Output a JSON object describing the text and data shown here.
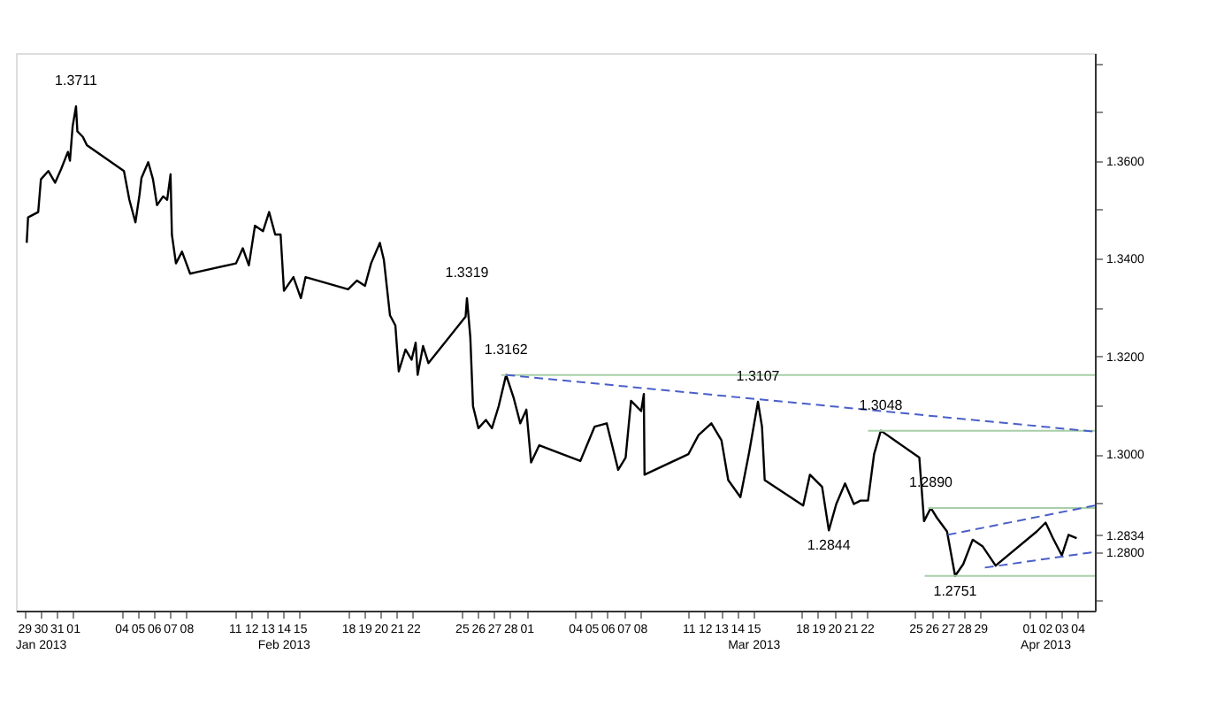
{
  "chart_data": {
    "type": "line",
    "xlim": [
      "2013-01-28T12:00",
      "2013-04-05T02:00"
    ],
    "ylim": [
      1.268,
      1.382
    ],
    "xticks": [
      {
        "value": "2013-01-29",
        "label": "29"
      },
      {
        "value": "2013-01-30",
        "label": "30\nJan 2013"
      },
      {
        "value": "2013-01-31",
        "label": "31"
      },
      {
        "value": "2013-02-01",
        "label": "01"
      },
      {
        "value": "2013-02-04",
        "label": "04"
      },
      {
        "value": "2013-02-05",
        "label": "05"
      },
      {
        "value": "2013-02-06",
        "label": "06"
      },
      {
        "value": "2013-02-07",
        "label": "07"
      },
      {
        "value": "2013-02-08",
        "label": "08"
      },
      {
        "value": "2013-02-11",
        "label": "11"
      },
      {
        "value": "2013-02-12",
        "label": "12"
      },
      {
        "value": "2013-02-13",
        "label": "13"
      },
      {
        "value": "2013-02-14",
        "label": "14\nFeb 2013"
      },
      {
        "value": "2013-02-15",
        "label": "15"
      },
      {
        "value": "2013-02-18",
        "label": "18"
      },
      {
        "value": "2013-02-19",
        "label": "19"
      },
      {
        "value": "2013-02-20",
        "label": "20"
      },
      {
        "value": "2013-02-21",
        "label": "21"
      },
      {
        "value": "2013-02-22",
        "label": "22"
      },
      {
        "value": "2013-02-25",
        "label": "25"
      },
      {
        "value": "2013-02-26",
        "label": "26"
      },
      {
        "value": "2013-02-27",
        "label": "27"
      },
      {
        "value": "2013-02-28",
        "label": "28"
      },
      {
        "value": "2013-03-01",
        "label": "01"
      },
      {
        "value": "2013-03-04",
        "label": "04"
      },
      {
        "value": "2013-03-05",
        "label": "05"
      },
      {
        "value": "2013-03-06",
        "label": "06"
      },
      {
        "value": "2013-03-07",
        "label": "07"
      },
      {
        "value": "2013-03-08",
        "label": "08"
      },
      {
        "value": "2013-03-11",
        "label": "11"
      },
      {
        "value": "2013-03-12",
        "label": "12"
      },
      {
        "value": "2013-03-13",
        "label": "13"
      },
      {
        "value": "2013-03-14",
        "label": "14"
      },
      {
        "value": "2013-03-15",
        "label": "15\nMar 2013"
      },
      {
        "value": "2013-03-18",
        "label": "18"
      },
      {
        "value": "2013-03-19",
        "label": "19"
      },
      {
        "value": "2013-03-20",
        "label": "20"
      },
      {
        "value": "2013-03-21",
        "label": "21"
      },
      {
        "value": "2013-03-22",
        "label": "22"
      },
      {
        "value": "2013-03-25",
        "label": "25"
      },
      {
        "value": "2013-03-26",
        "label": "26"
      },
      {
        "value": "2013-03-27",
        "label": "27"
      },
      {
        "value": "2013-03-28",
        "label": "28"
      },
      {
        "value": "2013-03-29",
        "label": "29"
      },
      {
        "value": "2013-04-01",
        "label": "01"
      },
      {
        "value": "2013-04-02",
        "label": "02\nApr 2013"
      },
      {
        "value": "2013-04-03",
        "label": "03"
      },
      {
        "value": "2013-04-04",
        "label": "04"
      }
    ],
    "yticks": [
      {
        "value": 1.27,
        "label": null
      },
      {
        "value": 1.28,
        "label": "1.2800"
      },
      {
        "value": 1.2834,
        "label": "1.2834"
      },
      {
        "value": 1.29,
        "label": null
      },
      {
        "value": 1.3,
        "label": "1.3000"
      },
      {
        "value": 1.31,
        "label": null
      },
      {
        "value": 1.32,
        "label": "1.3200"
      },
      {
        "value": 1.33,
        "label": null
      },
      {
        "value": 1.34,
        "label": "1.3400"
      },
      {
        "value": 1.35,
        "label": null
      },
      {
        "value": 1.36,
        "label": "1.3600"
      },
      {
        "value": 1.37,
        "label": null
      },
      {
        "value": 1.38,
        "label": null
      }
    ],
    "series": [
      {
        "color": "#000000",
        "x": [
          "2013-01-29T04:00",
          "2013-01-29T06:00",
          "2013-01-29T21:00",
          "2013-01-30T01:00",
          "2013-01-30T12:00",
          "2013-01-30T22:00",
          "2013-01-31T07:00",
          "2013-01-31T17:00",
          "2013-01-31T20:00",
          "2013-02-01T00:00",
          "2013-02-01T05:00",
          "2013-02-01T07:00",
          "2013-02-01T15:00",
          "2013-02-01T21:00",
          "2013-02-04T04:00",
          "2013-02-04T12:00",
          "2013-02-04T21:00",
          "2013-02-05T03:00",
          "2013-02-05T06:00",
          "2013-02-05T16:00",
          "2013-02-05T23:00",
          "2013-02-06T05:00",
          "2013-02-06T14:00",
          "2013-02-06T20:00",
          "2013-02-07T01:00",
          "2013-02-07T03:00",
          "2013-02-07T09:00",
          "2013-02-07T18:00",
          "2013-02-08T06:00",
          "2013-02-08T15:00",
          "2013-02-11T02:00",
          "2013-02-11T12:00",
          "2013-02-11T21:00",
          "2013-02-12T06:00",
          "2013-02-12T18:00",
          "2013-02-13T03:00",
          "2013-02-13T12:00",
          "2013-02-13T20:00",
          "2013-02-14T01:00",
          "2013-02-14T15:00",
          "2013-02-15T02:00",
          "2013-02-15T09:00",
          "2013-02-18T00:00",
          "2013-02-18T13:00",
          "2013-02-19T01:00",
          "2013-02-19T10:00",
          "2013-02-19T23:00",
          "2013-02-20T05:00",
          "2013-02-20T14:00",
          "2013-02-20T22:00",
          "2013-02-21T03:00",
          "2013-02-21T13:00",
          "2013-02-21T22:00",
          "2013-02-22T04:00",
          "2013-02-22T07:00",
          "2013-02-22T15:00",
          "2013-02-22T23:00",
          "2013-02-25T06:00",
          "2013-02-25T08:00",
          "2013-02-25T13:00",
          "2013-02-25T17:00",
          "2013-02-26T01:00",
          "2013-02-26T12:00",
          "2013-02-26T21:00",
          "2013-02-27T07:00",
          "2013-02-27T18:00",
          "2013-02-28T05:00",
          "2013-02-28T15:00",
          "2013-03-01T00:00",
          "2013-03-01T07:00",
          "2013-03-01T19:00",
          "2013-03-04T08:00",
          "2013-03-05T05:00",
          "2013-03-05T23:00",
          "2013-03-06T16:00",
          "2013-03-07T03:00",
          "2013-03-07T11:00",
          "2013-03-08T02:00",
          "2013-03-08T06:00",
          "2013-03-08T07:00",
          "2013-03-11T00:00",
          "2013-03-11T15:00",
          "2013-03-12T10:00",
          "2013-03-13T01:00",
          "2013-03-13T11:00",
          "2013-03-14T05:00",
          "2013-03-14T18:00",
          "2013-03-15T07:00",
          "2013-03-15T13:00",
          "2013-03-15T17:00",
          "2013-03-18T02:00",
          "2013-03-18T12:00",
          "2013-03-19T06:00",
          "2013-03-19T16:00",
          "2013-03-20T03:00",
          "2013-03-20T16:00",
          "2013-03-21T05:00",
          "2013-03-21T15:00",
          "2013-03-22T02:00",
          "2013-03-22T11:00",
          "2013-03-22T21:00",
          "2013-03-25T06:00",
          "2013-03-25T13:00",
          "2013-03-25T23:00",
          "2013-03-26T08:00",
          "2013-03-26T23:00",
          "2013-03-27T11:00",
          "2013-03-27T23:00",
          "2013-03-28T13:00",
          "2013-03-29T04:00",
          "2013-03-29T23:00",
          "2013-04-01T12:00",
          "2013-04-02T01:00",
          "2013-04-02T12:00",
          "2013-04-03T01:00",
          "2013-04-03T11:00",
          "2013-04-03T23:00"
        ],
        "values": [
          1.3432,
          1.3484,
          1.3495,
          1.3562,
          1.3579,
          1.3555,
          1.3583,
          1.3618,
          1.36,
          1.367,
          1.3711,
          1.366,
          1.3649,
          1.3632,
          1.3579,
          1.352,
          1.3474,
          1.353,
          1.3565,
          1.3597,
          1.3562,
          1.3509,
          1.3527,
          1.352,
          1.3572,
          1.3449,
          1.339,
          1.3414,
          1.3369,
          1.3372,
          1.339,
          1.3421,
          1.3386,
          1.3467,
          1.3456,
          1.3495,
          1.3449,
          1.3449,
          1.3334,
          1.3362,
          1.3319,
          1.3362,
          1.3337,
          1.3355,
          1.3344,
          1.339,
          1.3432,
          1.3397,
          1.3284,
          1.3263,
          1.3169,
          1.3214,
          1.3193,
          1.3228,
          1.3162,
          1.3221,
          1.3186,
          1.3281,
          1.3319,
          1.3239,
          1.3098,
          1.3053,
          1.307,
          1.3053,
          1.3098,
          1.3162,
          1.3116,
          1.3063,
          1.3091,
          1.2983,
          1.3018,
          1.2986,
          1.3056,
          1.3063,
          1.2968,
          1.2993,
          1.3109,
          1.3088,
          1.3123,
          1.2958,
          1.3,
          1.3039,
          1.3063,
          1.3028,
          1.2947,
          1.2912,
          1.3004,
          1.3107,
          1.3056,
          1.2947,
          1.2895,
          1.2958,
          1.2933,
          1.2844,
          1.2898,
          1.294,
          1.2898,
          1.2905,
          1.2905,
          1.3,
          1.3048,
          1.2993,
          1.2863,
          1.289,
          1.287,
          1.2842,
          1.2751,
          1.2775,
          1.2825,
          1.2811,
          1.2772,
          1.2842,
          1.286,
          1.2828,
          1.2793,
          1.2835,
          1.2828
        ]
      },
      {
        "type": "line",
        "color": "#a8cfa8",
        "x": [
          "2013-02-27T11:00",
          "2013-04-05T02:00"
        ],
        "values": [
          1.3162,
          1.3162
        ]
      },
      {
        "type": "line",
        "color": "#a8cfa8",
        "x": [
          "2013-03-22T02:00",
          "2013-04-05T02:00"
        ],
        "values": [
          1.3048,
          1.3048
        ]
      },
      {
        "type": "line",
        "color": "#a8cfa8",
        "x": [
          "2013-03-25T19:00",
          "2013-04-05T02:00"
        ],
        "values": [
          1.289,
          1.289
        ]
      },
      {
        "type": "line",
        "color": "#a8cfa8",
        "x": [
          "2013-03-25T14:00",
          "2013-04-05T02:00"
        ],
        "values": [
          1.2751,
          1.2751
        ]
      },
      {
        "type": "line",
        "color": "#4a5fc8",
        "line_style": "dashed",
        "x": [
          "2013-02-27T18:00",
          "2013-04-05T02:00"
        ],
        "values": [
          1.3162,
          1.3046
        ]
      },
      {
        "type": "line",
        "color": "#4a5fc8",
        "line_style": "dashed",
        "x": [
          "2013-03-27T00:00",
          "2013-04-05T02:00"
        ],
        "values": [
          1.2835,
          1.2895
        ]
      },
      {
        "type": "line",
        "color": "#4a5fc8",
        "line_style": "dashed",
        "x": [
          "2013-03-29T07:00",
          "2013-04-05T02:00"
        ],
        "values": [
          1.2768,
          1.28
        ]
      }
    ],
    "annotations": [
      {
        "text": "1.3711",
        "x": "2013-02-01T05:00",
        "y": 1.3711
      },
      {
        "text": "1.3319",
        "x": "2013-02-25T08:00",
        "y": 1.3319
      },
      {
        "text": "1.3162",
        "x": "2013-02-27T18:00",
        "y": 1.3162
      },
      {
        "text": "1.3107",
        "x": "2013-03-15T07:00",
        "y": 1.3107
      },
      {
        "text": "1.3048",
        "x": "2013-03-22T21:00",
        "y": 1.3048
      },
      {
        "text": "1.2844",
        "x": "2013-03-19T16:00",
        "y": 1.2844
      },
      {
        "text": "1.2890",
        "x": "2013-03-25T23:00",
        "y": 1.289
      },
      {
        "text": "1.2751",
        "x": "2013-03-27T11:00",
        "y": 1.2751
      }
    ]
  }
}
